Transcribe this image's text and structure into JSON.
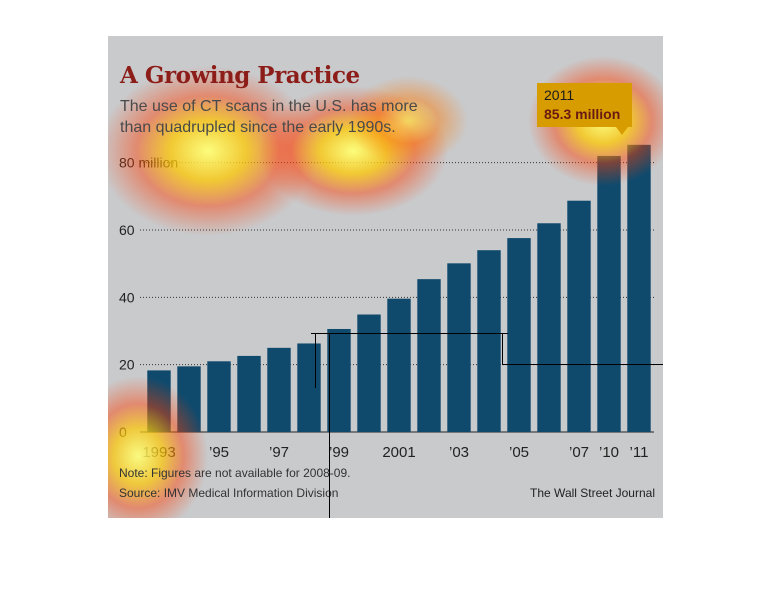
{
  "header": {
    "title": "A Growing Practice",
    "subtitle": "The use of CT scans in the U.S. has more than quadrupled since the early 1990s."
  },
  "callout": {
    "year": "2011",
    "value_text": "85.3 million"
  },
  "footer": {
    "note": "Note: Figures are not available for 2008-09.",
    "source": "Source: IMV Medical Information Division",
    "credit": "The Wall Street Journal"
  },
  "colors": {
    "bar": "#0f4a6d",
    "background": "#c9cacc",
    "title": "#8c1d18",
    "callout_bg": "#d79c00"
  },
  "chart_data": {
    "type": "bar",
    "title": "A Growing Practice",
    "subtitle": "The use of CT scans in the U.S. has more than quadrupled since the early 1990s.",
    "categories": [
      "1993",
      "1994",
      "1995",
      "1996",
      "1997",
      "1998",
      "1999",
      "2000",
      "2001",
      "2002",
      "2003",
      "2004",
      "2005",
      "2006",
      "2007",
      "2010",
      "2011"
    ],
    "values": [
      18.3,
      19.5,
      21.0,
      22.6,
      25.0,
      26.3,
      30.6,
      34.9,
      39.6,
      45.4,
      50.1,
      54.0,
      57.6,
      62.0,
      68.7,
      82.0,
      85.3
    ],
    "x_tick_labels": [
      "1993",
      "",
      "’95",
      "",
      "’97",
      "",
      "’99",
      "",
      "2001",
      "",
      "’03",
      "",
      "’05",
      "",
      "’07",
      "’10",
      "’11"
    ],
    "y_ticks": [
      0,
      20,
      40,
      60,
      80
    ],
    "y_tick_labels": [
      "0",
      "20",
      "40",
      "60",
      "80 million"
    ],
    "ylim": [
      0,
      90
    ],
    "grid": "horizontal-dotted",
    "xlabel": "",
    "ylabel": ""
  }
}
